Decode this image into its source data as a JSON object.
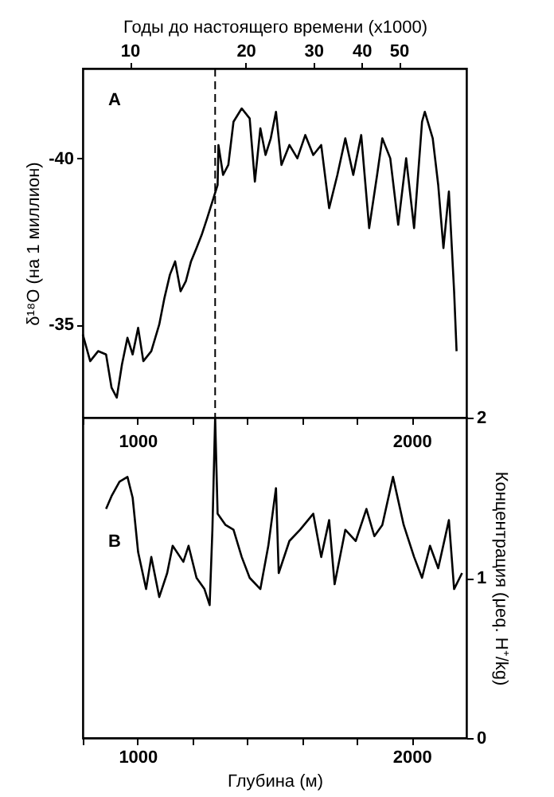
{
  "chart_data": [
    {
      "type": "line",
      "x2label": "Годы до настоящего времени (x1000)",
      "ylabel": "δ¹⁸O  (на 1 миллион)",
      "xlim": [
        800,
        2200
      ],
      "x2lim": [
        7.55,
        74.9
      ],
      "x2ticks": [
        10,
        20,
        30,
        40,
        50
      ],
      "log": "x2",
      "ylim": [
        -32.2,
        -42.7
      ],
      "yticks": [
        -40,
        -35
      ],
      "series": [
        {
          "color": "#000000",
          "x": [
            800,
            827,
            856,
            885,
            905,
            924,
            943,
            963,
            982,
            1002,
            1021,
            1050,
            1079,
            1098,
            1118,
            1137,
            1157,
            1176,
            1195,
            1215,
            1234,
            1254,
            1273,
            1292,
            1295,
            1312,
            1331,
            1350,
            1380,
            1409,
            1428,
            1448,
            1467,
            1486,
            1505,
            1525,
            1554,
            1583,
            1612,
            1641,
            1670,
            1699,
            1729,
            1758,
            1787,
            1816,
            1845,
            1874,
            1893,
            1922,
            1951,
            1980,
            2009,
            2038,
            2048,
            2077,
            2097,
            2116,
            2136,
            2155,
            2164
          ],
          "values": [
            -34.7,
            -33.9,
            -34.2,
            -34.1,
            -33.1,
            -32.8,
            -33.8,
            -34.6,
            -34.1,
            -34.9,
            -33.9,
            -34.2,
            -35.0,
            -35.8,
            -36.5,
            -36.9,
            -36.0,
            -36.3,
            -36.9,
            -37.3,
            -37.7,
            -38.2,
            -38.7,
            -39.2,
            -40.4,
            -39.5,
            -39.8,
            -41.1,
            -41.5,
            -41.2,
            -39.3,
            -40.9,
            -40.1,
            -40.6,
            -41.4,
            -39.8,
            -40.4,
            -40.0,
            -40.7,
            -40.1,
            -40.4,
            -38.5,
            -39.5,
            -40.6,
            -39.5,
            -40.7,
            -37.9,
            -39.5,
            -40.6,
            -40.0,
            -38.0,
            -40.0,
            -37.9,
            -41.1,
            -41.4,
            -40.6,
            -39.2,
            -37.3,
            -39.0,
            -36.0,
            -34.2
          ]
        }
      ],
      "ref_lines": [
        {
          "axis": "x",
          "value": 1283,
          "line_style": "dashed",
          "color": "#000000"
        }
      ],
      "annotations": [
        "A"
      ],
      "line_style": "solid",
      "marker": "none",
      "grid": false
    },
    {
      "type": "line",
      "xlabel": "Глубина (м)",
      "y2label": "Концентрация  (μeq. H⁺/kg)",
      "xlim": [
        800,
        2200
      ],
      "xticks": [
        {
          "value": 800,
          "label": null
        },
        1000,
        {
          "value": 1200,
          "label": null
        },
        {
          "value": 1400,
          "label": null
        },
        {
          "value": 1600,
          "label": null
        },
        {
          "value": 1800,
          "label": null
        },
        2000
      ],
      "x2lim": [
        800,
        2200
      ],
      "x2ticks": [
        {
          "value": 800,
          "label": null
        },
        1000,
        {
          "value": 1200,
          "label": null
        },
        {
          "value": 1400,
          "label": null
        },
        {
          "value": 1600,
          "label": null
        },
        {
          "value": 1800,
          "label": null
        },
        2000
      ],
      "y2lim": [
        0,
        2
      ],
      "y2ticks": [
        0,
        1,
        2
      ],
      "series": [
        {
          "color": "#000000",
          "axis": "y2",
          "x": [
            885,
            905,
            934,
            963,
            982,
            1002,
            1031,
            1050,
            1079,
            1108,
            1128,
            1167,
            1186,
            1215,
            1244,
            1263,
            1273,
            1283,
            1292,
            1321,
            1350,
            1380,
            1409,
            1448,
            1477,
            1505,
            1515,
            1554,
            1593,
            1641,
            1670,
            1699,
            1719,
            1758,
            1796,
            1835,
            1864,
            1893,
            1932,
            1971,
            2009,
            2038,
            2067,
            2097,
            2136,
            2155,
            2184
          ],
          "values": [
            1.43,
            1.51,
            1.6,
            1.63,
            1.5,
            1.16,
            0.93,
            1.13,
            0.88,
            1.03,
            1.2,
            1.1,
            1.2,
            1.0,
            0.93,
            0.83,
            1.3,
            2.0,
            1.4,
            1.33,
            1.3,
            1.13,
            1.0,
            0.93,
            1.2,
            1.56,
            1.03,
            1.23,
            1.3,
            1.4,
            1.13,
            1.36,
            0.96,
            1.3,
            1.23,
            1.43,
            1.26,
            1.33,
            1.63,
            1.33,
            1.13,
            1.0,
            1.2,
            1.06,
            1.36,
            0.93,
            1.03
          ]
        }
      ],
      "annotations": [
        "В"
      ],
      "line_style": "solid",
      "marker": "none",
      "grid": false
    }
  ]
}
